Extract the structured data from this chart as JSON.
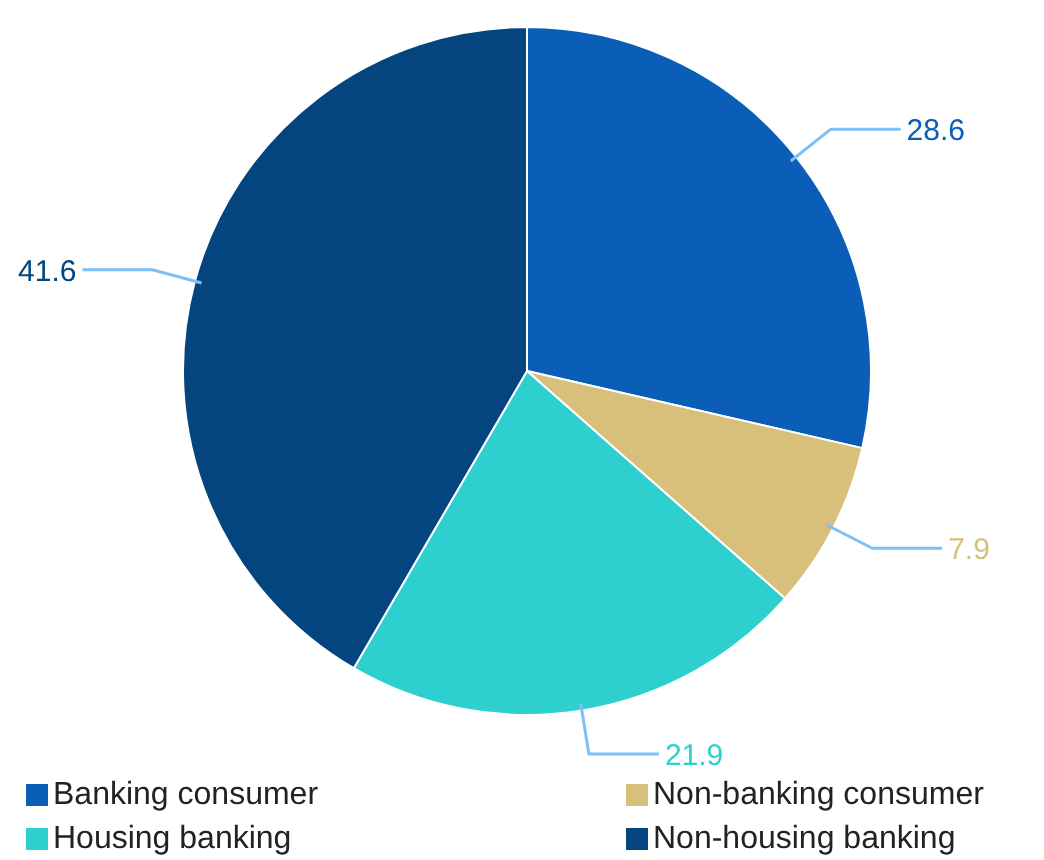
{
  "chart_data": {
    "type": "pie",
    "categories": [
      "Banking consumer",
      "Non-banking consumer",
      "Housing banking",
      "Non-housing banking"
    ],
    "values": [
      28.6,
      7.9,
      21.9,
      41.6
    ],
    "colors": [
      "#0a5eb8",
      "#d9c07a",
      "#2ecfcf",
      "#04457f"
    ],
    "data_labels": true,
    "legend": "bottom"
  }
}
